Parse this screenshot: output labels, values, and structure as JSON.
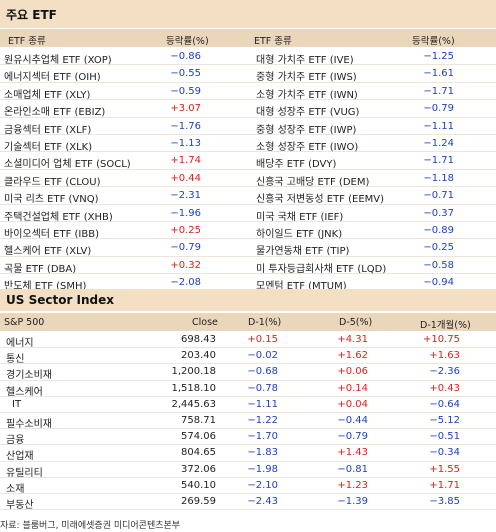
{
  "etf_section": {
    "title": "주요 ETF",
    "headers": {
      "name_left": "ETF 종류",
      "chg_left": "등락률(%)",
      "name_right": "ETF 종류",
      "chg_right": "등락률(%)"
    },
    "left": [
      {
        "name": "원유시추업체 ETF (XOP)",
        "chg": "-0.86"
      },
      {
        "name": "에너지섹터 ETF (OIH)",
        "chg": "-0.55"
      },
      {
        "name": "소매업체 ETF (XLY)",
        "chg": "-0.59"
      },
      {
        "name": "온라인소매 ETF (EBIZ)",
        "chg": "+3.07"
      },
      {
        "name": "금융섹터 ETF (XLF)",
        "chg": "-1.76"
      },
      {
        "name": "기술섹터 ETF (XLK)",
        "chg": "-1.13"
      },
      {
        "name": "소셜미디어 업체 ETF (SOCL)",
        "chg": "+1.74"
      },
      {
        "name": "클라우드 ETF (CLOU)",
        "chg": "+0.44"
      },
      {
        "name": "미국 리츠 ETF (VNQ)",
        "chg": "-2.31"
      },
      {
        "name": "주택건설업체 ETF (XHB)",
        "chg": "-1.96"
      },
      {
        "name": "바이오섹터 ETF (IBB)",
        "chg": "+0.25"
      },
      {
        "name": "헬스케어 ETF (XLV)",
        "chg": "-0.79"
      },
      {
        "name": "곡물 ETF (DBA)",
        "chg": "+0.32"
      },
      {
        "name": "반도체 ETF (SMH)",
        "chg": "-2.08"
      }
    ],
    "right": [
      {
        "name": "대형 가치주 ETF (IVE)",
        "chg": "-1.25"
      },
      {
        "name": "중형 가치주 ETF (IWS)",
        "chg": "-1.61"
      },
      {
        "name": "소형 가치주 ETF (IWN)",
        "chg": "-1.71"
      },
      {
        "name": "대형 성장주 ETF (VUG)",
        "chg": "-0.79"
      },
      {
        "name": "중형 성장주 ETF (IWP)",
        "chg": "-1.11"
      },
      {
        "name": "소형 성장주 ETF (IWO)",
        "chg": "-1.24"
      },
      {
        "name": "배당주 ETF (DVY)",
        "chg": "-1.71"
      },
      {
        "name": "신흥국 고배당 ETF (DEM)",
        "chg": "-1.18"
      },
      {
        "name": "신흥국 저변동성 ETF (EEMV)",
        "chg": "-0.71"
      },
      {
        "name": "미국 국채 ETF (IEF)",
        "chg": "-0.37"
      },
      {
        "name": "하이일드 ETF (JNK)",
        "chg": "-0.89"
      },
      {
        "name": "물가연동채 ETF (TIP)",
        "chg": "-0.25"
      },
      {
        "name": "미 투자등급회사채 ETF (LQD)",
        "chg": "-0.58"
      },
      {
        "name": "모멘텀 ETF (MTUM)",
        "chg": "-0.94"
      }
    ]
  },
  "sector_section": {
    "title": "US Sector Index",
    "headers": {
      "name": "S&P 500",
      "close": "Close",
      "d1": "D-1(%)",
      "d5": "D-5(%)",
      "m1": "D-1개월(%)"
    },
    "rows": [
      {
        "name": "에너지",
        "close": "698.43",
        "d1": "+0.15",
        "d5": "+4.31",
        "m1": "+10.75"
      },
      {
        "name": "통신",
        "close": "203.40",
        "d1": "-0.02",
        "d5": "+1.62",
        "m1": "+1.63"
      },
      {
        "name": "경기소비재",
        "close": "1,200.18",
        "d1": "-0.68",
        "d5": "+0.06",
        "m1": "-2.36"
      },
      {
        "name": "헬스케어",
        "close": "1,518.10",
        "d1": "-0.78",
        "d5": "+0.14",
        "m1": "+0.43"
      },
      {
        "name": "IT",
        "close": "2,445.63",
        "d1": "-1.11",
        "d5": "+0.04",
        "m1": "-0.64"
      },
      {
        "name": "필수소비재",
        "close": "758.71",
        "d1": "-1.22",
        "d5": "-0.44",
        "m1": "-5.12"
      },
      {
        "name": "금융",
        "close": "574.06",
        "d1": "-1.70",
        "d5": "-0.79",
        "m1": "-0.51"
      },
      {
        "name": "산업재",
        "close": "804.65",
        "d1": "-1.83",
        "d5": "+1.43",
        "m1": "-0.34"
      },
      {
        "name": "유틸리티",
        "close": "372.06",
        "d1": "-1.98",
        "d5": "-0.81",
        "m1": "+1.55"
      },
      {
        "name": "소재",
        "close": "540.10",
        "d1": "-2.10",
        "d5": "+1.23",
        "m1": "+1.71"
      },
      {
        "name": "부동산",
        "close": "269.59",
        "d1": "-2.43",
        "d5": "-1.39",
        "m1": "-3.85"
      }
    ]
  },
  "source": "자료: 블룸버그, 미래에셋증권 미디어콘텐츠본부"
}
